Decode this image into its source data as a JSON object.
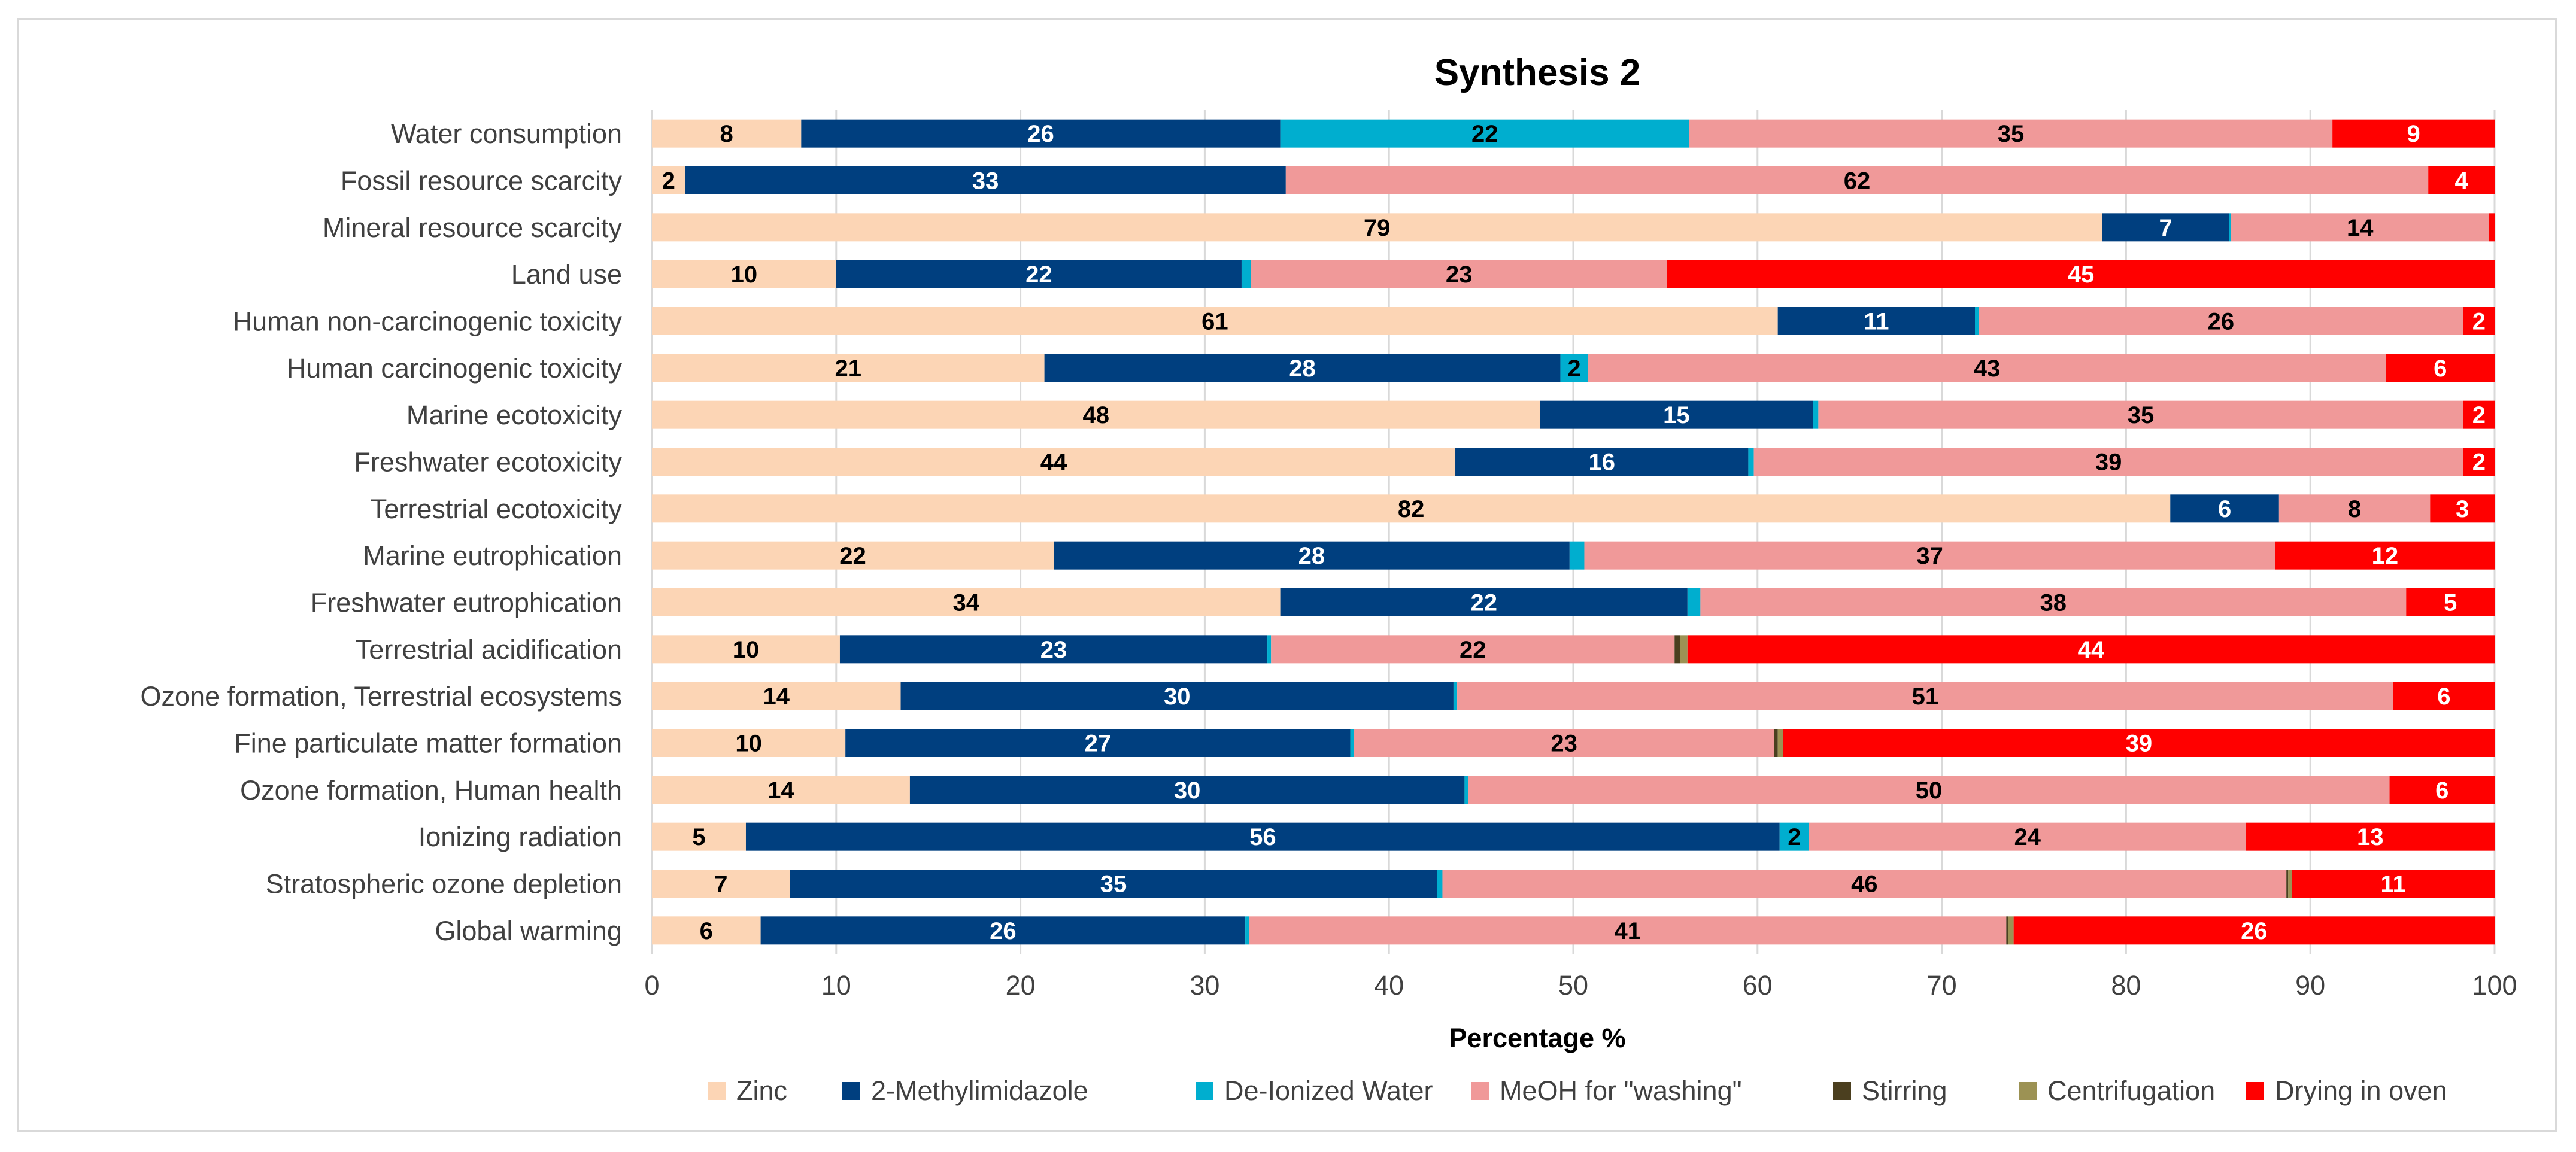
{
  "chart_data": {
    "type": "bar",
    "orientation": "horizontal",
    "stacked": true,
    "title": "Synthesis 2",
    "xlabel": "Percentage %",
    "ylabel": "",
    "xlim": [
      0,
      100
    ],
    "xticks": [
      0,
      10,
      20,
      30,
      40,
      50,
      60,
      70,
      80,
      90,
      100
    ],
    "grid": true,
    "legend_position": "bottom",
    "categories": [
      "Water consumption",
      "Fossil resource scarcity",
      "Mineral resource scarcity",
      "Land use",
      "Human non-carcinogenic toxicity",
      "Human carcinogenic toxicity",
      "Marine ecotoxicity",
      "Freshwater ecotoxicity",
      "Terrestrial ecotoxicity",
      "Marine eutrophication",
      "Freshwater eutrophication",
      "Terrestrial acidification",
      "Ozone formation, Terrestrial ecosystems",
      "Fine particulate matter formation",
      "Ozone formation, Human health",
      "Ionizing radiation",
      "Stratospheric ozone depletion",
      "Global warming"
    ],
    "series": [
      {
        "name": "Zinc",
        "color": "#FCD5B5",
        "label_color": "#000000",
        "values": [
          8.1,
          1.8,
          78.7,
          10,
          61.1,
          21.3,
          48.2,
          43.6,
          82.4,
          21.8,
          34.1,
          10.2,
          13.5,
          10.5,
          14,
          5.1,
          7.5,
          5.9
        ]
      },
      {
        "name": "2-Methylimidazole",
        "color": "#003F7F",
        "label_color": "#FFFFFF",
        "values": [
          26,
          32.6,
          6.9,
          22,
          10.7,
          28,
          14.8,
          15.9,
          5.9,
          28,
          22.1,
          23.2,
          30,
          27.4,
          30.1,
          56.1,
          35.1,
          26.3
        ]
      },
      {
        "name": "De-Ionized Water",
        "color": "#00AECF",
        "label_color": "#000000",
        "values": [
          22.2,
          0,
          0.1,
          0.5,
          0.2,
          1.5,
          0.3,
          0.3,
          0,
          0.8,
          0.7,
          0.2,
          0.2,
          0.2,
          0.2,
          1.6,
          0.3,
          0.2
        ]
      },
      {
        "name": "MeOH for \"washing\"",
        "color": "#F09999",
        "label_color": "#000000",
        "values": [
          34.9,
          62,
          14,
          22.6,
          26.3,
          43.3,
          35,
          38.5,
          8.2,
          37.5,
          38.3,
          21.9,
          50.8,
          22.8,
          50,
          23.7,
          45.8,
          41.1
        ]
      },
      {
        "name": "Stirring",
        "color": "#4B3F1F",
        "label_color": "#FFFFFF",
        "values": [
          0,
          0,
          0,
          0,
          0,
          0,
          0,
          0,
          0,
          0,
          0,
          0.3,
          0,
          0.2,
          0,
          0,
          0.1,
          0.1
        ]
      },
      {
        "name": "Centrifugation",
        "color": "#9C9254",
        "label_color": "#FFFFFF",
        "values": [
          0,
          0,
          0,
          0,
          0,
          0,
          0,
          0,
          0,
          0,
          0,
          0.4,
          0,
          0.3,
          0,
          0,
          0.2,
          0.3
        ]
      },
      {
        "name": "Drying in oven",
        "color": "#FF0000",
        "label_color": "#FFFFFF",
        "values": [
          8.8,
          3.6,
          0.3,
          44.9,
          1.7,
          5.9,
          1.7,
          1.7,
          3.5,
          11.9,
          4.8,
          43.8,
          5.5,
          38.6,
          5.7,
          13.5,
          11,
          26.1
        ]
      }
    ],
    "data_labels": [
      [
        "8",
        "26",
        "22",
        "35",
        "9"
      ],
      [
        "2",
        "33",
        "",
        "62",
        "4"
      ],
      [
        "79",
        "7",
        "",
        "14",
        ""
      ],
      [
        "10",
        "22",
        "",
        "23",
        "45"
      ],
      [
        "61",
        "11",
        "",
        "26",
        "2"
      ],
      [
        "21",
        "28",
        "2",
        "43",
        "6"
      ],
      [
        "48",
        "15",
        "",
        "35",
        "2"
      ],
      [
        "44",
        "16",
        "",
        "39",
        "2"
      ],
      [
        "82",
        "6",
        "",
        "8",
        "3"
      ],
      [
        "22",
        "28",
        "",
        "37",
        "12"
      ],
      [
        "34",
        "22",
        "",
        "38",
        "5"
      ],
      [
        "10",
        "23",
        "",
        "22",
        "44"
      ],
      [
        "14",
        "30",
        "",
        "51",
        "6"
      ],
      [
        "10",
        "27",
        "",
        "23",
        "39"
      ],
      [
        "14",
        "30",
        "",
        "50",
        "6"
      ],
      [
        "5",
        "56",
        "2",
        "24",
        "13"
      ],
      [
        "7",
        "35",
        "",
        "46",
        "11"
      ],
      [
        "6",
        "26",
        "",
        "41",
        "26"
      ]
    ],
    "data_label_series": [
      0,
      1,
      2,
      3,
      6
    ]
  }
}
